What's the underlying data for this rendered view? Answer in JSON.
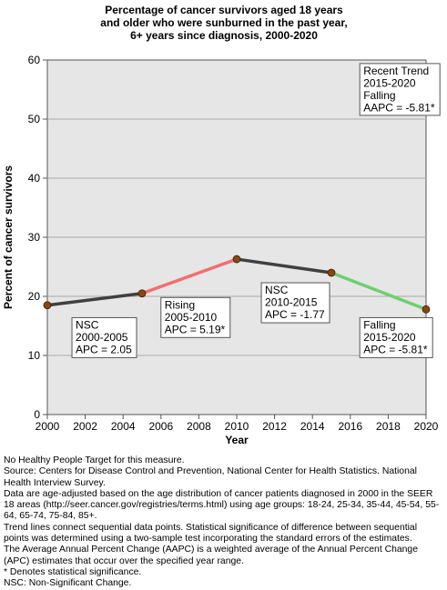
{
  "chart_data": {
    "type": "line",
    "title": [
      "Percentage of cancer survivors aged 18 years",
      "and older who were sunburned in the past year,",
      "6+ years since diagnosis,  2000-2020"
    ],
    "xlabel": "Year",
    "ylabel": "Percent of cancer survivors",
    "xlim": [
      2000,
      2020
    ],
    "ylim": [
      0,
      60
    ],
    "x_ticks": [
      "2000",
      "2002",
      "2004",
      "2006",
      "2008",
      "2010",
      "2012",
      "2014",
      "2016",
      "2018",
      "2020"
    ],
    "y_ticks": [
      "0",
      "10",
      "20",
      "30",
      "40",
      "50",
      "60"
    ],
    "grid": "horizontal",
    "points": [
      {
        "x": 2000,
        "y": 18.5
      },
      {
        "x": 2005,
        "y": 20.5
      },
      {
        "x": 2010,
        "y": 26.3
      },
      {
        "x": 2015,
        "y": 24.0
      },
      {
        "x": 2020,
        "y": 17.8
      }
    ],
    "segments": [
      {
        "from": 2000,
        "to": 2005,
        "trend": "NSC",
        "color": "#404040"
      },
      {
        "from": 2005,
        "to": 2010,
        "trend": "Rising",
        "color": "#f07070"
      },
      {
        "from": 2010,
        "to": 2015,
        "trend": "NSC",
        "color": "#404040"
      },
      {
        "from": 2015,
        "to": 2020,
        "trend": "Falling",
        "color": "#6fcf6f"
      }
    ],
    "point_color": "#8b4513",
    "annotations": [
      {
        "lines": [
          "NSC",
          "2000-2005",
          "APC =  2.05"
        ]
      },
      {
        "lines": [
          "Rising",
          "2005-2010",
          "APC =  5.19*"
        ]
      },
      {
        "lines": [
          "NSC",
          "2010-2015",
          "APC = -1.77"
        ]
      },
      {
        "lines": [
          "Falling",
          "2015-2020",
          "APC = -5.81*"
        ]
      },
      {
        "lines": [
          "Recent Trend",
          "2015-2020",
          "Falling",
          "AAPC = -5.81*"
        ]
      }
    ]
  },
  "footnotes": [
    "No Healthy People Target for this measure.",
    "Source: Centers for Disease Control and Prevention, National Center for Health Statistics. National Health Interview Survey.",
    "Data are age-adjusted based on the age distribution of cancer patients diagnosed in 2000 in the SEER 18 areas (http://seer.cancer.gov/registries/terms.html) using age groups: 18-24, 25-34, 35-44, 45-54, 55-64, 65-74, 75-84, 85+.",
    "Trend lines connect sequential data points. Statistical significance of difference between sequential points was determined using a two-sample test incorporating the standard errors of the estimates.",
    "The Average Annual Percent Change (AAPC) is a weighted average of the Annual Percent Change (APC) estimates that occur over the specified year range.",
    "* Denotes statistical significance.",
    "NSC: Non-Significant Change."
  ]
}
